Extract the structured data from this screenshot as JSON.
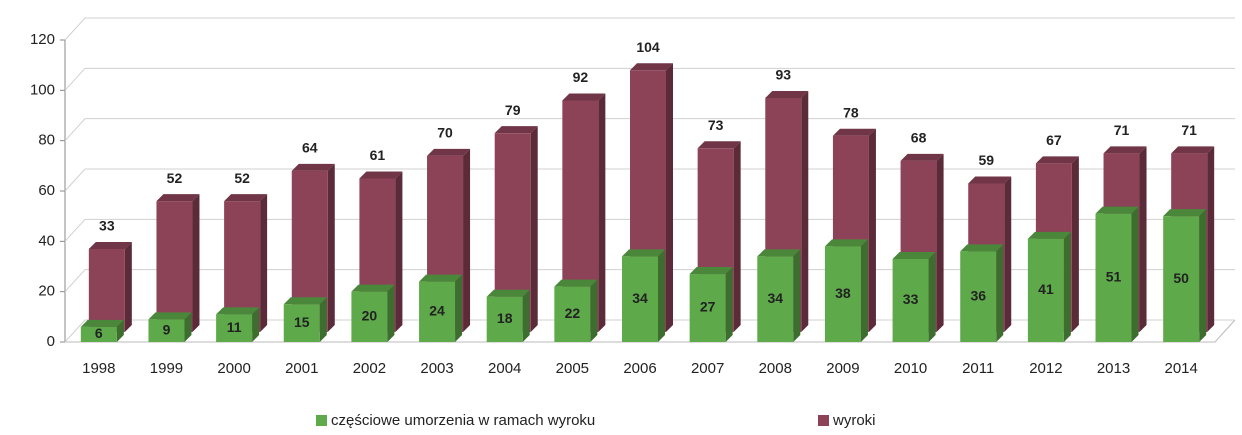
{
  "chart_data": {
    "type": "bar",
    "categories": [
      "1998",
      "1999",
      "2000",
      "2001",
      "2002",
      "2003",
      "2004",
      "2005",
      "2006",
      "2007",
      "2008",
      "2009",
      "2010",
      "2011",
      "2012",
      "2013",
      "2014"
    ],
    "series": [
      {
        "name": "wyroki",
        "color": "#8c4257",
        "values": [
          33,
          52,
          52,
          64,
          61,
          70,
          79,
          92,
          104,
          73,
          93,
          78,
          68,
          59,
          67,
          71,
          71
        ]
      },
      {
        "name": "częściowe umorzenia w ramach wyroku",
        "color": "#5ea94a",
        "values": [
          6,
          9,
          11,
          15,
          20,
          24,
          18,
          22,
          34,
          27,
          34,
          38,
          33,
          36,
          41,
          51,
          50
        ]
      }
    ],
    "legend_order": [
      1,
      0
    ],
    "ylim": [
      0,
      120
    ],
    "yticks": [
      0,
      20,
      40,
      60,
      80,
      100,
      120
    ],
    "grid": true
  }
}
